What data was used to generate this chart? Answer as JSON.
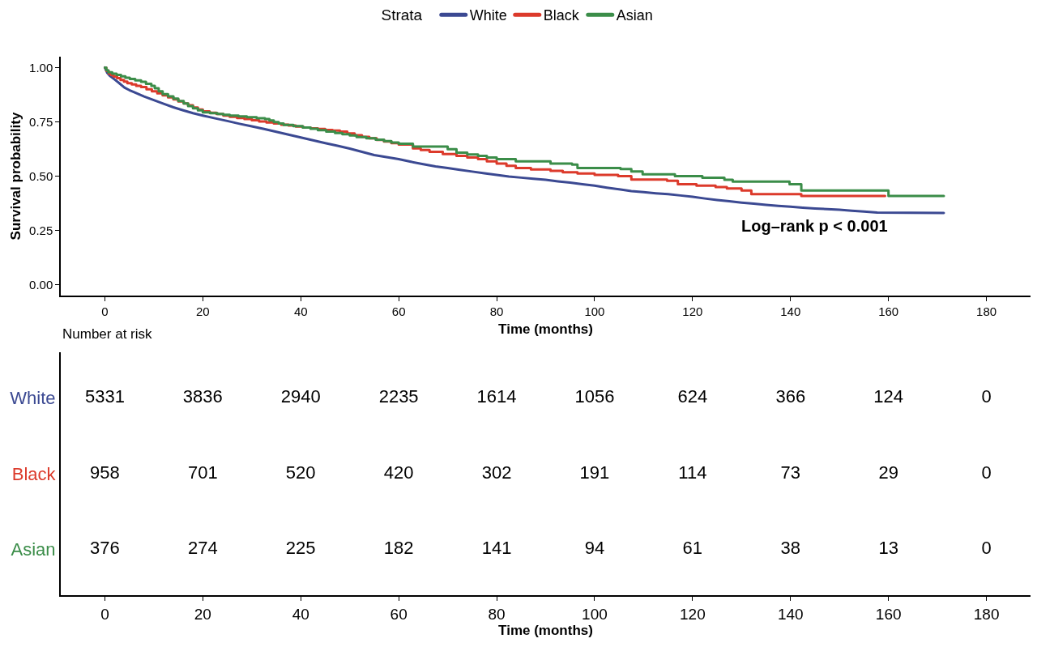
{
  "chart_data": [
    {
      "type": "step",
      "xlabel": "Time (months)",
      "ylabel": "Survival probability",
      "legend_title": "Strata",
      "legend": "top",
      "xlim": [
        -9,
        189
      ],
      "xticks": [
        0,
        20,
        40,
        60,
        80,
        100,
        120,
        140,
        160,
        180
      ],
      "ylim": [
        -0.05,
        1.05
      ],
      "yticks": [
        {
          "value": 0,
          "label": "0.00"
        },
        {
          "value": 0.25,
          "label": "0.25"
        },
        {
          "value": 0.5,
          "label": "0.50"
        },
        {
          "value": 0.75,
          "label": "0.75"
        },
        {
          "value": 1,
          "label": "1.00"
        }
      ],
      "annotations": [
        "Log–rank p < 0.001"
      ],
      "series": [
        {
          "name": "White",
          "type": "line",
          "color": "#3b4992",
          "x": [
            0,
            0.5,
            1,
            2,
            3,
            4,
            5,
            6,
            8,
            10,
            12,
            14,
            16,
            18,
            20,
            22.5,
            25,
            27.5,
            30,
            32.5,
            35,
            37.5,
            40,
            42.5,
            45,
            47.5,
            50,
            52.5,
            55,
            57.5,
            60,
            62.5,
            65,
            67.5,
            70,
            72.5,
            75,
            77.5,
            80,
            82.5,
            85,
            87.5,
            90,
            92.5,
            95,
            97.5,
            100,
            102.5,
            105,
            107.5,
            110,
            112.5,
            115,
            117.5,
            120,
            122.5,
            125,
            127.5,
            130,
            132.5,
            135,
            137.5,
            140,
            142.5,
            145,
            147.5,
            150,
            152.5,
            155,
            157.7,
            171.3
          ],
          "values": [
            1,
            0.975,
            0.962,
            0.945,
            0.927,
            0.908,
            0.896,
            0.886,
            0.867,
            0.85,
            0.833,
            0.817,
            0.803,
            0.79,
            0.779,
            0.766,
            0.754,
            0.741,
            0.729,
            0.717,
            0.704,
            0.691,
            0.678,
            0.665,
            0.652,
            0.64,
            0.627,
            0.612,
            0.597,
            0.588,
            0.578,
            0.566,
            0.555,
            0.545,
            0.537,
            0.529,
            0.521,
            0.513,
            0.506,
            0.498,
            0.493,
            0.488,
            0.483,
            0.476,
            0.47,
            0.463,
            0.456,
            0.447,
            0.439,
            0.431,
            0.426,
            0.421,
            0.417,
            0.411,
            0.405,
            0.397,
            0.39,
            0.384,
            0.378,
            0.373,
            0.368,
            0.363,
            0.359,
            0.355,
            0.351,
            0.348,
            0.345,
            0.341,
            0.337,
            0.332,
            0.33
          ]
        },
        {
          "name": "Black",
          "color": "#dc3a2b",
          "x": [
            0,
            0.3,
            0.8,
            1.3,
            1.8,
            2.5,
            3.2,
            3.9,
            4.6,
            5.5,
            6.4,
            7.4,
            8.5,
            9.6,
            10.7,
            11.8,
            12.9,
            14,
            15,
            16.1,
            17,
            18,
            19,
            20,
            21.4,
            22.8,
            24.2,
            25.5,
            27,
            28.5,
            30,
            31.5,
            33,
            34.5,
            36,
            37.5,
            39,
            40.5,
            42,
            43.5,
            45,
            46.5,
            48,
            49.5,
            51,
            52.5,
            54,
            55.5,
            57,
            58.5,
            60,
            62.9,
            64.5,
            66.3,
            69,
            71.8,
            74,
            76.2,
            78,
            80,
            82,
            83.9,
            87,
            91,
            93.5,
            96.5,
            100,
            104.8,
            107.5,
            114.8,
            117,
            120.8,
            124.7,
            127,
            130,
            132,
            142.2,
            159.3
          ],
          "values": [
            1,
            0.985,
            0.972,
            0.965,
            0.959,
            0.951,
            0.943,
            0.935,
            0.928,
            0.922,
            0.916,
            0.91,
            0.9,
            0.891,
            0.881,
            0.872,
            0.863,
            0.853,
            0.844,
            0.835,
            0.826,
            0.816,
            0.807,
            0.798,
            0.792,
            0.786,
            0.779,
            0.773,
            0.768,
            0.763,
            0.757,
            0.752,
            0.747,
            0.742,
            0.737,
            0.733,
            0.728,
            0.724,
            0.72,
            0.717,
            0.713,
            0.71,
            0.705,
            0.697,
            0.688,
            0.681,
            0.674,
            0.667,
            0.659,
            0.652,
            0.645,
            0.628,
            0.62,
            0.612,
            0.602,
            0.593,
            0.586,
            0.578,
            0.568,
            0.558,
            0.548,
            0.537,
            0.531,
            0.524,
            0.518,
            0.512,
            0.506,
            0.5,
            0.484,
            0.479,
            0.463,
            0.456,
            0.45,
            0.443,
            0.434,
            0.417,
            0.409,
            0.409
          ]
        },
        {
          "name": "Asian",
          "color": "#3b8d49",
          "x": [
            0,
            0.3,
            0.7,
            1.5,
            2.4,
            3.3,
            4.2,
            5.1,
            6.2,
            7.4,
            8.4,
            9.5,
            10.2,
            11,
            11.8,
            12.9,
            14,
            15,
            16.1,
            17,
            18,
            19,
            20,
            21.5,
            23,
            24.2,
            25.5,
            27.3,
            29,
            31,
            32.7,
            33.6,
            34.5,
            35.5,
            36.5,
            38.5,
            40.4,
            42,
            43.5,
            45.2,
            47,
            48.5,
            50,
            51.4,
            53.4,
            55.3,
            57,
            58.5,
            60,
            62.9,
            70,
            71.8,
            74,
            76.2,
            78,
            80,
            83.9,
            91,
            95.4,
            96.5,
            105.3,
            107.5,
            109.8,
            116.4,
            122,
            126.5,
            128.2,
            139.8,
            142.2,
            160,
            171.3
          ],
          "values": [
            1,
            0.988,
            0.978,
            0.972,
            0.966,
            0.96,
            0.953,
            0.947,
            0.941,
            0.934,
            0.925,
            0.916,
            0.905,
            0.891,
            0.878,
            0.867,
            0.857,
            0.846,
            0.835,
            0.823,
            0.812,
            0.803,
            0.794,
            0.79,
            0.786,
            0.782,
            0.779,
            0.775,
            0.771,
            0.767,
            0.763,
            0.756,
            0.749,
            0.742,
            0.736,
            0.73,
            0.724,
            0.718,
            0.712,
            0.705,
            0.699,
            0.693,
            0.687,
            0.68,
            0.674,
            0.668,
            0.661,
            0.655,
            0.649,
            0.636,
            0.624,
            0.608,
            0.6,
            0.593,
            0.586,
            0.578,
            0.568,
            0.558,
            0.553,
            0.537,
            0.533,
            0.521,
            0.508,
            0.5,
            0.493,
            0.483,
            0.475,
            0.463,
            0.434,
            0.409,
            0.409
          ]
        }
      ]
    },
    {
      "type": "heatmap",
      "title": "Number at risk",
      "xlabel": "Time (months)",
      "categories": [
        "0",
        "20",
        "40",
        "60",
        "80",
        "100",
        "120",
        "140",
        "160",
        "180"
      ],
      "y_categories": [
        "White",
        "Black",
        "Asian"
      ],
      "data_labels": true,
      "cells": [
        [
          5331,
          3836,
          2940,
          2235,
          1614,
          1056,
          624,
          366,
          124,
          0
        ],
        [
          958,
          701,
          520,
          420,
          302,
          191,
          114,
          73,
          29,
          0
        ],
        [
          376,
          274,
          225,
          182,
          141,
          94,
          61,
          38,
          13,
          0
        ]
      ]
    }
  ]
}
